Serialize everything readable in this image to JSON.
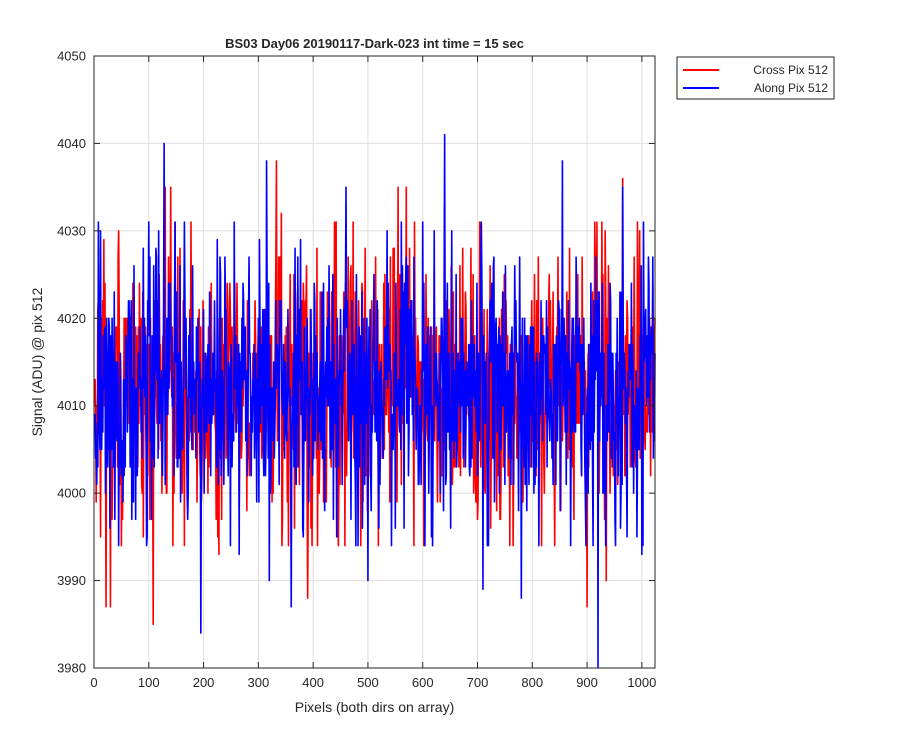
{
  "chart_data": {
    "type": "line",
    "title": "BS03 Day06 20190117-Dark-023 int time = 15 sec",
    "xlabel": "Pixels (both dirs on array)",
    "ylabel": "Signal (ADU) @ pix 512",
    "xlim": [
      0,
      1024
    ],
    "ylim": [
      3980,
      4050
    ],
    "xticks": [
      0,
      100,
      200,
      300,
      400,
      500,
      600,
      700,
      800,
      900,
      1000
    ],
    "yticks": [
      3980,
      3990,
      4000,
      4010,
      4020,
      4030,
      4040,
      4050
    ],
    "grid": true,
    "legend_position": "top-right-outside",
    "series": [
      {
        "name": "Cross Pix 512",
        "color": "#ff0000",
        "x_range": [
          1,
          1024
        ],
        "points_count": 1024,
        "mean": 4012,
        "typical_range": [
          4000,
          4025
        ],
        "landmarks": [
          {
            "x": 12,
            "y": 3995
          },
          {
            "x": 20,
            "y": 4024
          },
          {
            "x": 22,
            "y": 3987
          },
          {
            "x": 30,
            "y": 3987
          },
          {
            "x": 45,
            "y": 4030
          },
          {
            "x": 108,
            "y": 3985
          },
          {
            "x": 130,
            "y": 4035
          },
          {
            "x": 140,
            "y": 4035
          },
          {
            "x": 165,
            "y": 3994
          },
          {
            "x": 228,
            "y": 3993
          },
          {
            "x": 333,
            "y": 4038
          },
          {
            "x": 342,
            "y": 4032
          },
          {
            "x": 390,
            "y": 3988
          },
          {
            "x": 555,
            "y": 4035
          },
          {
            "x": 570,
            "y": 4035
          },
          {
            "x": 640,
            "y": 4033
          },
          {
            "x": 900,
            "y": 3987
          },
          {
            "x": 935,
            "y": 3990
          },
          {
            "x": 965,
            "y": 4036
          }
        ]
      },
      {
        "name": "Along Pix 512",
        "color": "#0000ff",
        "x_range": [
          1,
          1024
        ],
        "points_count": 1024,
        "mean": 4012,
        "typical_range": [
          4000,
          4025
        ],
        "landmarks": [
          {
            "x": 5,
            "y": 4001
          },
          {
            "x": 8,
            "y": 4031
          },
          {
            "x": 45,
            "y": 3994
          },
          {
            "x": 128,
            "y": 4040
          },
          {
            "x": 195,
            "y": 3984
          },
          {
            "x": 265,
            "y": 3993
          },
          {
            "x": 315,
            "y": 4038
          },
          {
            "x": 320,
            "y": 3990
          },
          {
            "x": 360,
            "y": 3987
          },
          {
            "x": 460,
            "y": 4035
          },
          {
            "x": 500,
            "y": 3990
          },
          {
            "x": 640,
            "y": 4041
          },
          {
            "x": 710,
            "y": 3989
          },
          {
            "x": 780,
            "y": 3988
          },
          {
            "x": 855,
            "y": 4038
          },
          {
            "x": 920,
            "y": 3980
          },
          {
            "x": 965,
            "y": 4035
          },
          {
            "x": 1000,
            "y": 3993
          }
        ]
      }
    ]
  }
}
